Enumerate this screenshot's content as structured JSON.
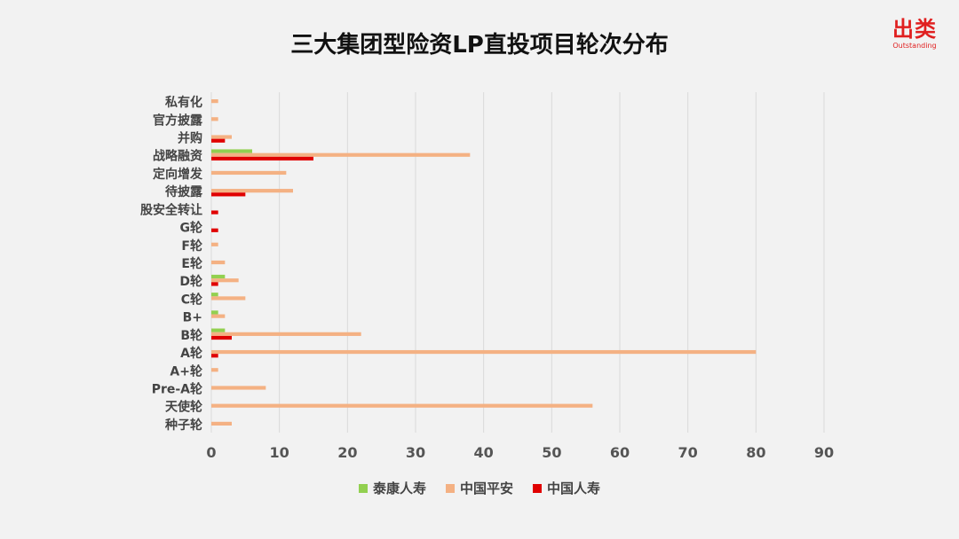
{
  "title": "三大集团型险资LP直投项目轮次分布",
  "brand": {
    "cn": "出类",
    "en": "Outstanding"
  },
  "colors": {
    "taikang": "#92d050",
    "pingan": "#f4b183",
    "renshou": "#e00000",
    "grid": "#d9d9d9"
  },
  "chart_data": {
    "type": "bar",
    "orientation": "horizontal",
    "categories": [
      "私有化",
      "官方披露",
      "并购",
      "战略融资",
      "定向增发",
      "待披露",
      "股安全转让",
      "G轮",
      "F轮",
      "E轮",
      "D轮",
      "C轮",
      "B+",
      "B轮",
      "A轮",
      "A+轮",
      "Pre-A轮",
      "天使轮",
      "种子轮"
    ],
    "series": [
      {
        "name": "泰康人寿",
        "values": [
          0,
          0,
          0,
          6,
          0,
          0,
          0,
          0,
          0,
          0,
          2,
          1,
          1,
          2,
          0,
          0,
          0,
          0,
          0
        ]
      },
      {
        "name": "中国平安",
        "values": [
          1,
          1,
          3,
          38,
          11,
          12,
          0,
          0,
          1,
          2,
          4,
          5,
          2,
          22,
          80,
          1,
          8,
          56,
          3
        ]
      },
      {
        "name": "中国人寿",
        "values": [
          0,
          0,
          2,
          15,
          0,
          5,
          1,
          1,
          0,
          0,
          1,
          0,
          0,
          3,
          1,
          0,
          0,
          0,
          0
        ]
      }
    ],
    "xticks": [
      "0",
      "10",
      "20",
      "30",
      "40",
      "50",
      "60",
      "70",
      "80",
      "90"
    ],
    "xlim": [
      0,
      90
    ],
    "grid": true,
    "legend_position": "bottom"
  }
}
